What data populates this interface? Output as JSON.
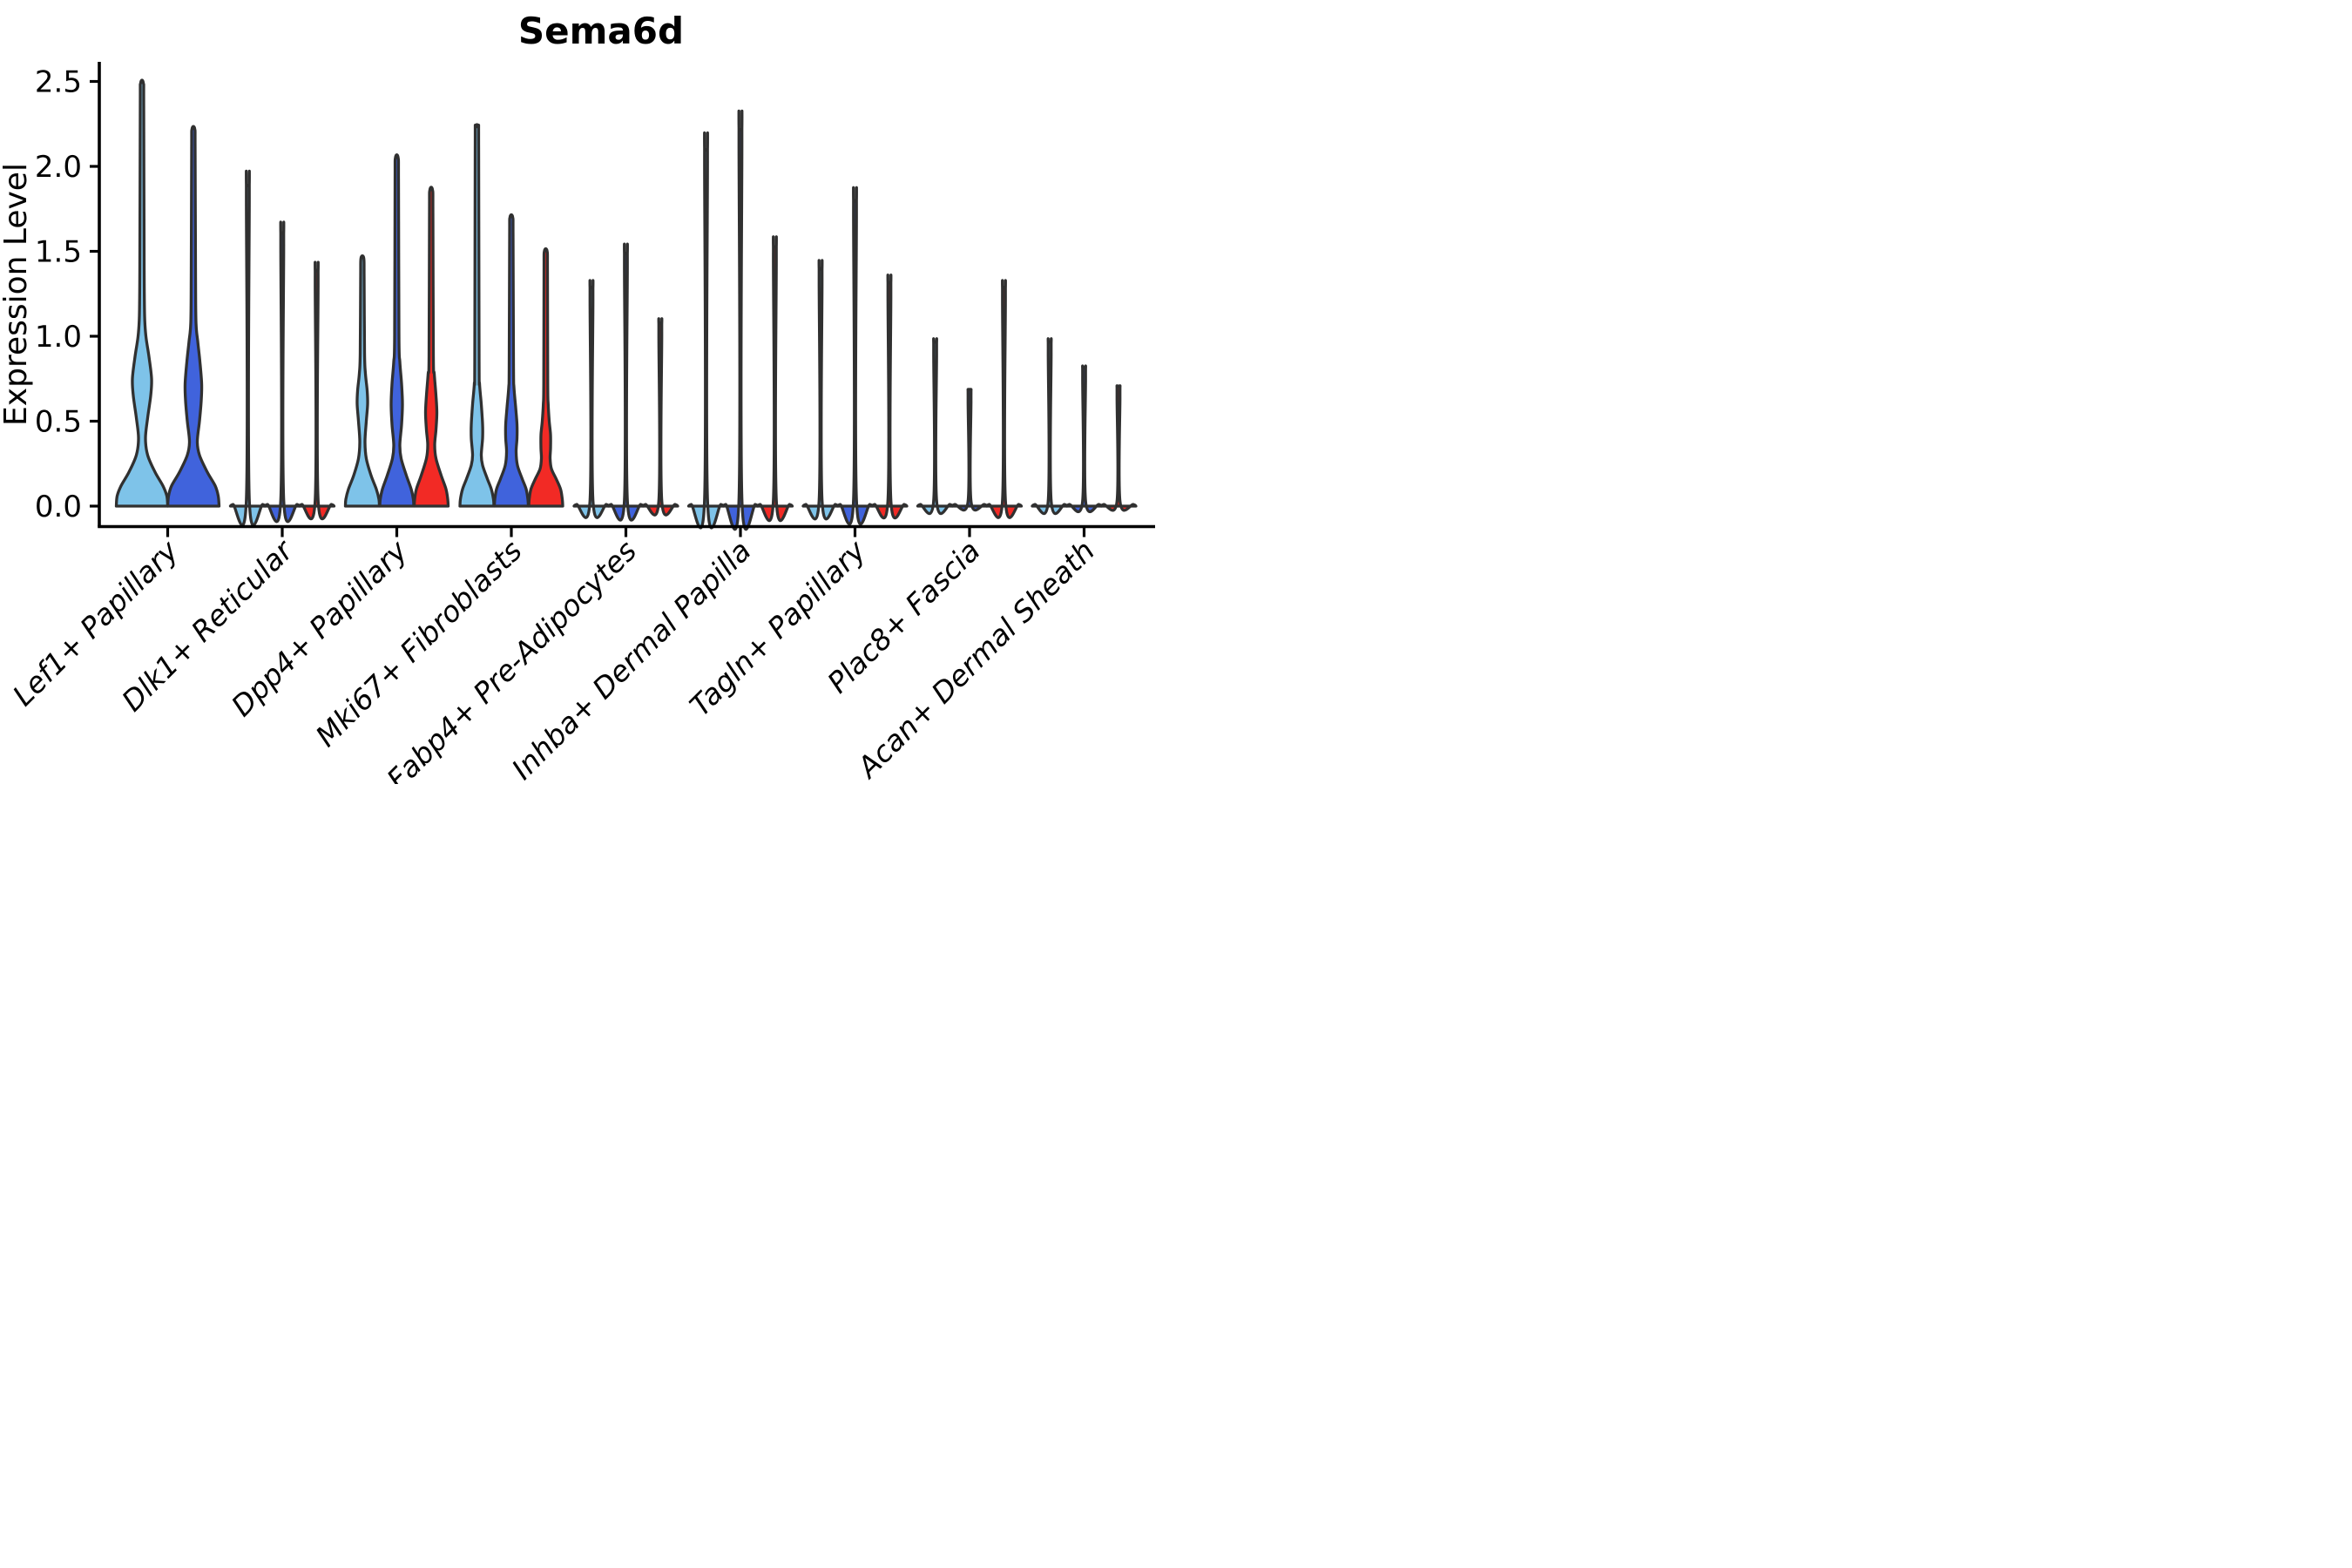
{
  "title": "Sema6d",
  "axes": {
    "y_label": "Expression Level",
    "y_tick_labels": [
      "0.0",
      "0.5",
      "1.0",
      "1.5",
      "2.0",
      "2.5"
    ]
  },
  "colors": {
    "split_light_blue": "#7EC3E9",
    "split_dark_blue": "#4063DC",
    "split_red": "#F22A25",
    "outline": "#303030",
    "axis": "#000000",
    "background": "#ffffff"
  },
  "chart_data": {
    "type": "violin",
    "title": "Sema6d",
    "ylabel": "Expression Level",
    "xlabel": "",
    "ylim": [
      0,
      2.6
    ],
    "yticks": [
      0.0,
      0.5,
      1.0,
      1.5,
      2.0,
      2.5
    ],
    "grid": "off",
    "legend": "none",
    "categories": [
      "Lef1+ Papillary",
      "Dlk1+ Reticular",
      "Dpp4+ Papillary",
      "Mki67+ Fibroblasts",
      "Fabp4+ Pre-Adipocytes",
      "Inhba+ Dermal Papilla",
      "Tagln+ Papillary",
      "Plac8+ Fascia",
      "Acan+ Dermal Sheath"
    ],
    "series": [
      {
        "name": "split-light-blue",
        "color": "#7EC3E9",
        "max_expression": [
          2.49,
          1.88,
          1.46,
          2.23,
          1.28,
          2.09,
          1.39,
          0.96,
          0.96
        ]
      },
      {
        "name": "split-dark-blue",
        "color": "#4063DC",
        "max_expression": [
          2.22,
          1.6,
          2.05,
          1.7,
          1.48,
          2.21,
          1.79,
          0.68,
          0.81
        ]
      },
      {
        "name": "split-red",
        "color": "#F22A25",
        "max_expression": [
          null,
          1.38,
          1.86,
          1.5,
          1.07,
          1.52,
          1.31,
          1.28,
          0.7
        ]
      }
    ],
    "violin_styles": [
      [
        "dense",
        "dense",
        null
      ],
      [
        "spike",
        "spike",
        "spike"
      ],
      [
        "dense",
        "dense",
        "dense"
      ],
      [
        "dense",
        "dense",
        "dense"
      ],
      [
        "spike",
        "spike",
        "spike"
      ],
      [
        "spike",
        "spike",
        "spike"
      ],
      [
        "spike",
        "spike",
        "spike"
      ],
      [
        "spike",
        "spike",
        "spike"
      ],
      [
        "spike",
        "spike",
        "spike"
      ]
    ],
    "dense_profiles": {
      "0-0": [
        [
          0,
          29.5
        ],
        [
          0.06,
          28.5
        ],
        [
          0.12,
          24
        ],
        [
          0.2,
          15
        ],
        [
          0.3,
          6.5
        ],
        [
          0.4,
          4
        ],
        [
          0.52,
          6.5
        ],
        [
          0.65,
          10
        ],
        [
          0.75,
          11
        ],
        [
          0.88,
          8
        ],
        [
          1.0,
          4.5
        ],
        [
          1.12,
          3
        ],
        [
          1.4,
          2.5
        ],
        [
          2.35,
          2
        ],
        [
          2.49,
          1.6
        ]
      ],
      "0-1": [
        [
          0,
          29.5
        ],
        [
          0.06,
          28.5
        ],
        [
          0.12,
          25
        ],
        [
          0.2,
          16
        ],
        [
          0.3,
          7
        ],
        [
          0.38,
          4.5
        ],
        [
          0.5,
          7
        ],
        [
          0.62,
          9
        ],
        [
          0.72,
          9.5
        ],
        [
          0.85,
          7.5
        ],
        [
          0.97,
          5
        ],
        [
          1.08,
          3
        ],
        [
          1.35,
          2.5
        ],
        [
          2.1,
          2
        ],
        [
          2.22,
          1.6
        ]
      ],
      "2-0": [
        [
          0,
          19.5
        ],
        [
          0.04,
          19
        ],
        [
          0.1,
          16
        ],
        [
          0.18,
          10
        ],
        [
          0.28,
          4.5
        ],
        [
          0.38,
          3
        ],
        [
          0.5,
          4.5
        ],
        [
          0.6,
          6
        ],
        [
          0.68,
          5.5
        ],
        [
          0.78,
          3.5
        ],
        [
          0.9,
          2.5
        ],
        [
          1.35,
          2
        ],
        [
          1.46,
          1.6
        ]
      ],
      "2-1": [
        [
          0,
          19.5
        ],
        [
          0.04,
          19
        ],
        [
          0.1,
          16.5
        ],
        [
          0.18,
          11
        ],
        [
          0.28,
          5
        ],
        [
          0.36,
          3.5
        ],
        [
          0.48,
          5.5
        ],
        [
          0.6,
          6.5
        ],
        [
          0.72,
          5.5
        ],
        [
          0.85,
          3.5
        ],
        [
          1.0,
          2.5
        ],
        [
          1.9,
          2
        ],
        [
          2.05,
          1.6
        ]
      ],
      "2-2": [
        [
          0,
          19.5
        ],
        [
          0.04,
          19
        ],
        [
          0.1,
          17
        ],
        [
          0.18,
          11.5
        ],
        [
          0.28,
          5.5
        ],
        [
          0.36,
          4
        ],
        [
          0.45,
          5.5
        ],
        [
          0.55,
          6.5
        ],
        [
          0.65,
          5.5
        ],
        [
          0.78,
          3.5
        ],
        [
          0.88,
          2.5
        ],
        [
          1.72,
          2
        ],
        [
          1.86,
          1.6
        ]
      ],
      "3-0": [
        [
          0,
          19.5
        ],
        [
          0.04,
          19
        ],
        [
          0.1,
          16.5
        ],
        [
          0.16,
          12
        ],
        [
          0.24,
          6.5
        ],
        [
          0.3,
          5
        ],
        [
          0.4,
          6.5
        ],
        [
          0.48,
          6.5
        ],
        [
          0.6,
          5
        ],
        [
          0.72,
          3
        ],
        [
          0.85,
          2.5
        ],
        [
          2.1,
          2
        ],
        [
          2.23,
          1.6
        ]
      ],
      "3-1": [
        [
          0,
          19.5
        ],
        [
          0.04,
          19
        ],
        [
          0.1,
          17
        ],
        [
          0.16,
          12.5
        ],
        [
          0.24,
          7
        ],
        [
          0.32,
          5.5
        ],
        [
          0.4,
          6.5
        ],
        [
          0.48,
          6.5
        ],
        [
          0.58,
          5
        ],
        [
          0.7,
          3
        ],
        [
          0.82,
          2.5
        ],
        [
          1.58,
          2
        ],
        [
          1.7,
          1.6
        ]
      ],
      "3-2": [
        [
          0,
          19.5
        ],
        [
          0.04,
          19
        ],
        [
          0.1,
          17
        ],
        [
          0.16,
          12
        ],
        [
          0.22,
          6.5
        ],
        [
          0.28,
          5
        ],
        [
          0.34,
          5.5
        ],
        [
          0.42,
          5.5
        ],
        [
          0.5,
          4
        ],
        [
          0.6,
          2.8
        ],
        [
          0.72,
          2.3
        ],
        [
          1.38,
          2
        ],
        [
          1.5,
          1.6
        ]
      ]
    }
  }
}
